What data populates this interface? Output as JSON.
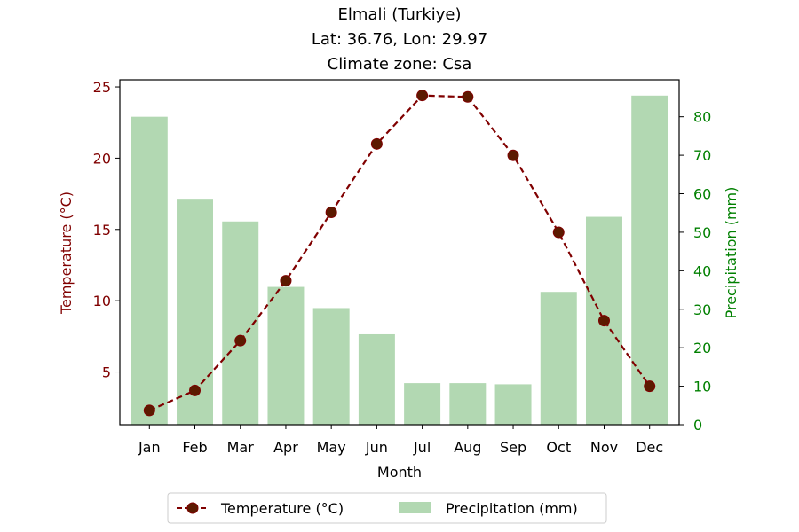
{
  "chart_data": {
    "type": "bar+line",
    "title_lines": [
      "Elmali (Turkiye)",
      "Lat: 36.76, Lon: 29.97",
      "Climate zone: Csa"
    ],
    "xlabel": "Month",
    "ylabel_left": "Temperature (°C)",
    "ylabel_right": "Precipitation (mm)",
    "categories": [
      "Jan",
      "Feb",
      "Mar",
      "Apr",
      "May",
      "Jun",
      "Jul",
      "Aug",
      "Sep",
      "Oct",
      "Nov",
      "Dec"
    ],
    "temperature": {
      "name": "Temperature (°C)",
      "values": [
        2.3,
        3.7,
        7.2,
        11.4,
        16.2,
        21.0,
        24.4,
        24.3,
        20.2,
        14.8,
        8.6,
        4.0
      ],
      "ylim": [
        1.3,
        25.5
      ],
      "yticks": [
        5,
        10,
        15,
        20,
        25
      ]
    },
    "precipitation": {
      "name": "Precipitation (mm)",
      "values": [
        80.0,
        58.7,
        52.8,
        35.8,
        30.3,
        23.5,
        10.8,
        10.8,
        10.5,
        34.5,
        54.0,
        85.5
      ],
      "ylim": [
        0,
        89.6
      ],
      "yticks": [
        0,
        10,
        20,
        30,
        40,
        50,
        60,
        70,
        80
      ]
    },
    "colors": {
      "temperature": "#800000",
      "marker_fill": "#5c1a00",
      "precipitation": "#b2d8b2",
      "right_axis": "#008000",
      "axis": "#000000"
    },
    "legend_placement": "bottom-center",
    "grid": false
  }
}
